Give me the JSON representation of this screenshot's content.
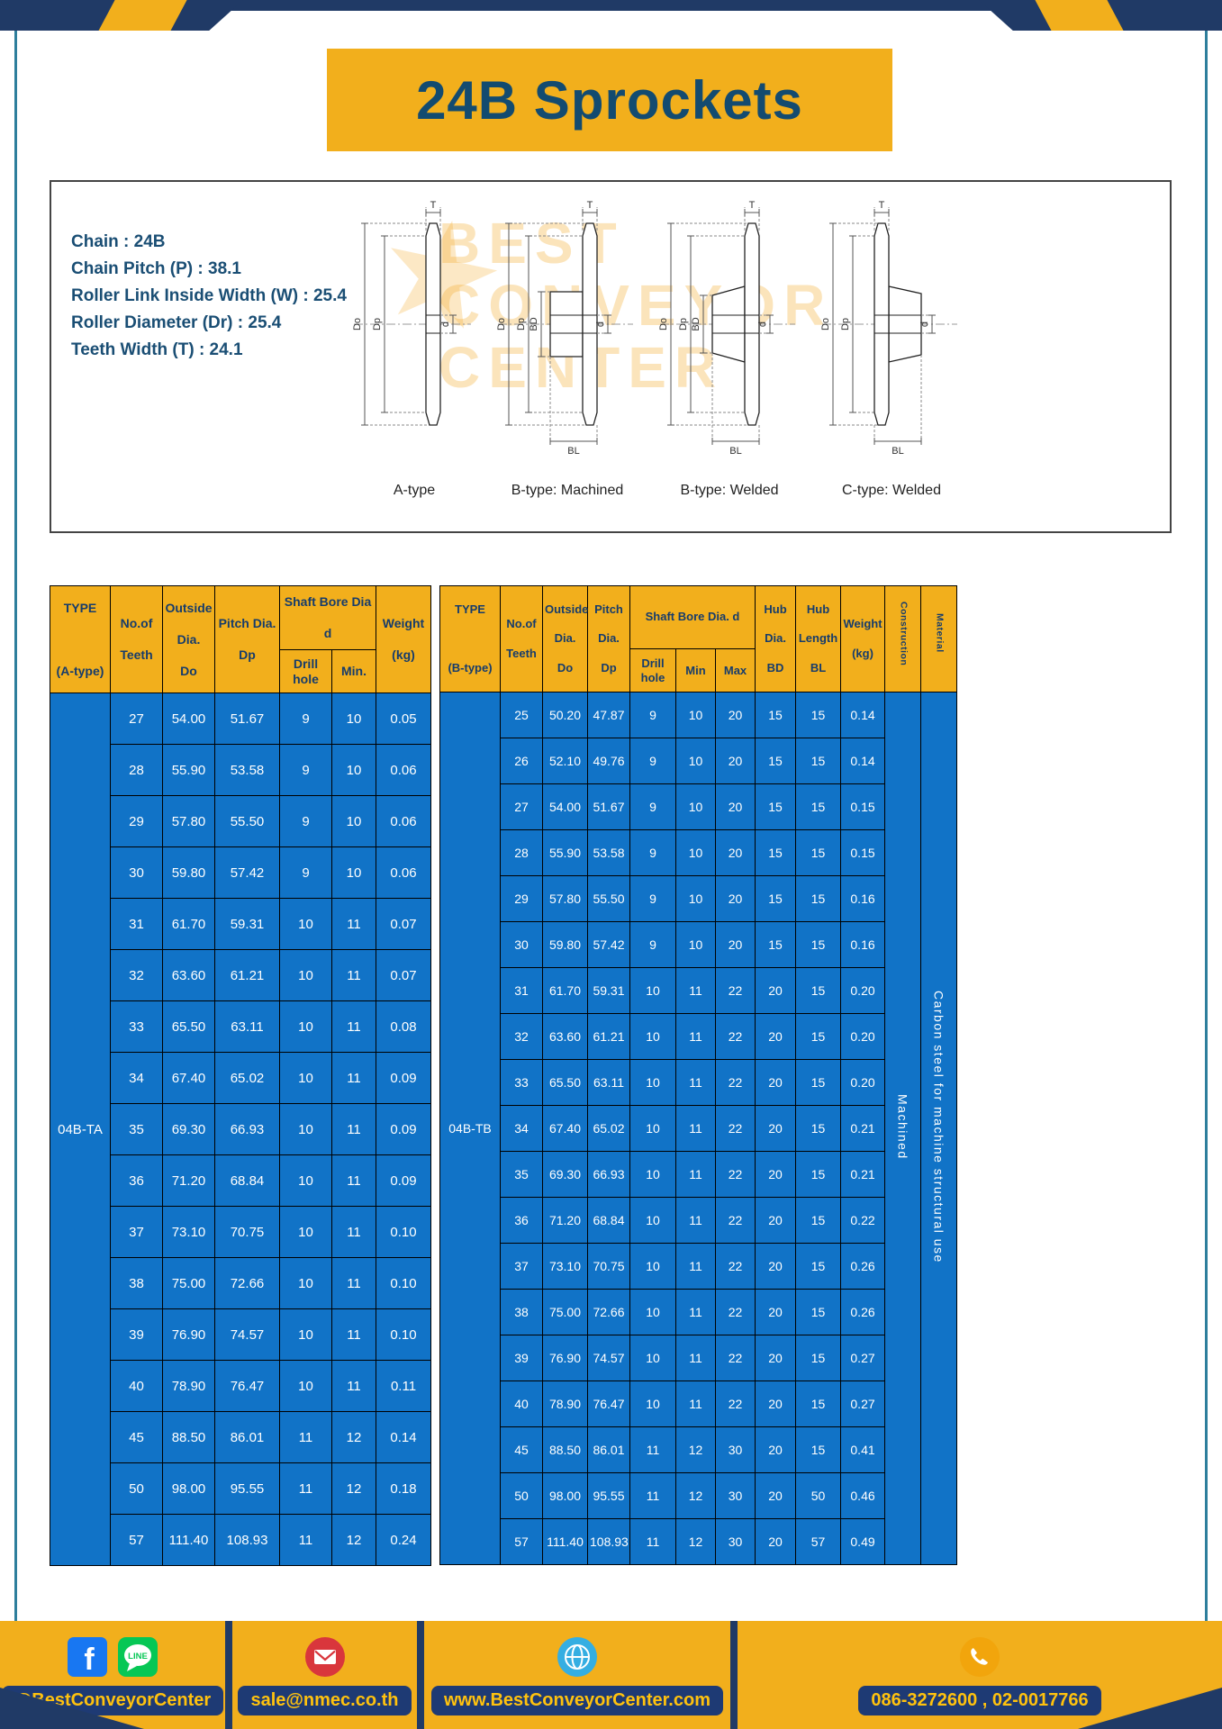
{
  "page": {
    "title": "24B Sprockets"
  },
  "colors": {
    "accent_yellow": "#F2AF1C",
    "navy": "#203A66",
    "table_blue": "#1173C7",
    "header_text_navy": "#173C6B",
    "title_navy": "#134B70",
    "footer_text_yellow": "#FFC20E"
  },
  "specs": {
    "lines": [
      "Chain : 24B",
      "Chain Pitch (P) : 38.1",
      "Roller Link Inside Width (W) : 25.4",
      "Roller Diameter (Dr) : 25.4",
      "Teeth Width (T) : 24.1"
    ],
    "watermark": {
      "star": "★",
      "line1": "BEST",
      "line2": "CONVEYOR",
      "line3": "CENTER"
    },
    "figures": [
      {
        "label": "A-type",
        "dims": {
          "top": "T",
          "outer": "Do",
          "pitch": "Dp",
          "bore": "d"
        }
      },
      {
        "label": "B-type: Machined",
        "dims": {
          "top": "T",
          "outer": "Do",
          "pitch": "Dp",
          "bore": "d",
          "hub": "BD",
          "length": "BL"
        }
      },
      {
        "label": "B-type: Welded",
        "dims": {
          "top": "T",
          "outer": "Do",
          "pitch": "Dp",
          "bore": "d",
          "hub": "BD",
          "length": "BL"
        }
      },
      {
        "label": "C-type: Welded",
        "dims": {
          "top": "T",
          "outer": "Do",
          "pitch": "Dp",
          "bore": "d",
          "length": "BL"
        }
      }
    ]
  },
  "table_a": {
    "headers": {
      "type": "TYPE\n\n(A-type)",
      "teeth": "No.of\nTeeth",
      "outside": "Outside\nDia.\nDo",
      "pitch": "Pitch Dia.\nDp",
      "shaft_group": "Shaft Bore Dia d",
      "drill": "Drill hole",
      "min": "Min.",
      "weight": "Weight\n(kg)"
    },
    "type_value": "04B-TA",
    "rows": [
      [
        "27",
        "54.00",
        "51.67",
        "9",
        "10",
        "0.05"
      ],
      [
        "28",
        "55.90",
        "53.58",
        "9",
        "10",
        "0.06"
      ],
      [
        "29",
        "57.80",
        "55.50",
        "9",
        "10",
        "0.06"
      ],
      [
        "30",
        "59.80",
        "57.42",
        "9",
        "10",
        "0.06"
      ],
      [
        "31",
        "61.70",
        "59.31",
        "10",
        "11",
        "0.07"
      ],
      [
        "32",
        "63.60",
        "61.21",
        "10",
        "11",
        "0.07"
      ],
      [
        "33",
        "65.50",
        "63.11",
        "10",
        "11",
        "0.08"
      ],
      [
        "34",
        "67.40",
        "65.02",
        "10",
        "11",
        "0.09"
      ],
      [
        "35",
        "69.30",
        "66.93",
        "10",
        "11",
        "0.09"
      ],
      [
        "36",
        "71.20",
        "68.84",
        "10",
        "11",
        "0.09"
      ],
      [
        "37",
        "73.10",
        "70.75",
        "10",
        "11",
        "0.10"
      ],
      [
        "38",
        "75.00",
        "72.66",
        "10",
        "11",
        "0.10"
      ],
      [
        "39",
        "76.90",
        "74.57",
        "10",
        "11",
        "0.10"
      ],
      [
        "40",
        "78.90",
        "76.47",
        "10",
        "11",
        "0.11"
      ],
      [
        "45",
        "88.50",
        "86.01",
        "11",
        "12",
        "0.14"
      ],
      [
        "50",
        "98.00",
        "95.55",
        "11",
        "12",
        "0.18"
      ],
      [
        "57",
        "111.40",
        "108.93",
        "11",
        "12",
        "0.24"
      ]
    ]
  },
  "table_b": {
    "headers": {
      "type": "TYPE\n\n(B-type)",
      "teeth": "No.of\nTeeth",
      "outside": "Outside\nDia.\nDo",
      "pitch": "Pitch\nDia.\nDp",
      "shaft_group": "Shaft Bore Dia. d",
      "drill": "Drill hole",
      "min": "Min",
      "max": "Max",
      "hub_dia": "Hub\nDia.\nBD",
      "hub_len": "Hub\nLength\nBL",
      "weight": "Weight\n(kg)",
      "construction": "Construction",
      "material": "Material"
    },
    "type_value": "04B-TB",
    "construction_value": "Machined",
    "material_value": "Carbon steel for machine structural use",
    "rows": [
      [
        "25",
        "50.20",
        "47.87",
        "9",
        "10",
        "20",
        "15",
        "15",
        "0.14"
      ],
      [
        "26",
        "52.10",
        "49.76",
        "9",
        "10",
        "20",
        "15",
        "15",
        "0.14"
      ],
      [
        "27",
        "54.00",
        "51.67",
        "9",
        "10",
        "20",
        "15",
        "15",
        "0.15"
      ],
      [
        "28",
        "55.90",
        "53.58",
        "9",
        "10",
        "20",
        "15",
        "15",
        "0.15"
      ],
      [
        "29",
        "57.80",
        "55.50",
        "9",
        "10",
        "20",
        "15",
        "15",
        "0.16"
      ],
      [
        "30",
        "59.80",
        "57.42",
        "9",
        "10",
        "20",
        "15",
        "15",
        "0.16"
      ],
      [
        "31",
        "61.70",
        "59.31",
        "10",
        "11",
        "22",
        "20",
        "15",
        "0.20"
      ],
      [
        "32",
        "63.60",
        "61.21",
        "10",
        "11",
        "22",
        "20",
        "15",
        "0.20"
      ],
      [
        "33",
        "65.50",
        "63.11",
        "10",
        "11",
        "22",
        "20",
        "15",
        "0.20"
      ],
      [
        "34",
        "67.40",
        "65.02",
        "10",
        "11",
        "22",
        "20",
        "15",
        "0.21"
      ],
      [
        "35",
        "69.30",
        "66.93",
        "10",
        "11",
        "22",
        "20",
        "15",
        "0.21"
      ],
      [
        "36",
        "71.20",
        "68.84",
        "10",
        "11",
        "22",
        "20",
        "15",
        "0.22"
      ],
      [
        "37",
        "73.10",
        "70.75",
        "10",
        "11",
        "22",
        "20",
        "15",
        "0.26"
      ],
      [
        "38",
        "75.00",
        "72.66",
        "10",
        "11",
        "22",
        "20",
        "15",
        "0.26"
      ],
      [
        "39",
        "76.90",
        "74.57",
        "10",
        "11",
        "22",
        "20",
        "15",
        "0.27"
      ],
      [
        "40",
        "78.90",
        "76.47",
        "10",
        "11",
        "22",
        "20",
        "15",
        "0.27"
      ],
      [
        "45",
        "88.50",
        "86.01",
        "11",
        "12",
        "30",
        "20",
        "15",
        "0.41"
      ],
      [
        "50",
        "98.00",
        "95.55",
        "11",
        "12",
        "30",
        "20",
        "50",
        "0.46"
      ],
      [
        "57",
        "111.40",
        "108.93",
        "11",
        "12",
        "30",
        "20",
        "57",
        "0.49"
      ]
    ]
  },
  "footer": {
    "icons": {
      "facebook": "facebook-icon",
      "line": "line-icon",
      "email": "email-icon",
      "globe": "globe-icon",
      "phone": "phone-icon"
    },
    "facebook_letter": "f",
    "line_text": "LINE",
    "social_label": "@BestConveyorCenter",
    "email_label": "sale@nmec.co.th",
    "web_label": "www.BestConveyorCenter.com",
    "phone_label": "086-3272600 , 02-0017766"
  }
}
